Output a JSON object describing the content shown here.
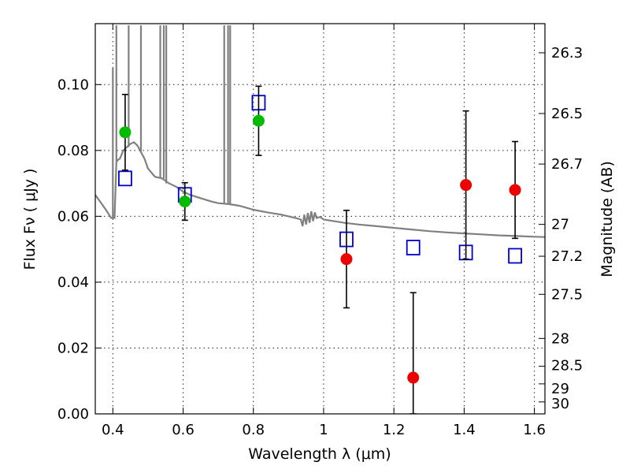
{
  "chart_data": {
    "type": "scatter",
    "xlabel": "Wavelength  λ (μm)",
    "ylabel": "Flux  Fν  ( μJy )",
    "ylabel_right": "Magnitude (AB)",
    "xlim": [
      0.35,
      1.63
    ],
    "ylim": [
      0.0,
      0.1185
    ],
    "grid": true,
    "x_ticks": [
      0.4,
      0.6,
      0.8,
      1.0,
      1.2,
      1.4,
      1.6
    ],
    "x_tick_labels": [
      "0.4",
      "0.6",
      "0.8",
      "1",
      "1.2",
      "1.4",
      "1.6"
    ],
    "y_ticks": [
      0.0,
      0.02,
      0.04,
      0.06,
      0.08,
      0.1
    ],
    "y_tick_labels": [
      "0.00",
      "0.02",
      "0.04",
      "0.06",
      "0.08",
      "0.10"
    ],
    "mag_ticks": [
      26.3,
      26.5,
      26.7,
      27.0,
      27.2,
      27.5,
      28.0,
      28.5,
      29.0,
      30.0
    ],
    "mag_tick_labels": [
      "26.3",
      "26.5",
      "26.7",
      "27",
      "27.2",
      "27.5",
      "28",
      "28.5",
      "29",
      "30"
    ],
    "series": [
      {
        "kind": "model_spectrum",
        "color": "#808080",
        "x": [
          0.35,
          0.36,
          0.38,
          0.395,
          0.405,
          0.41,
          0.415,
          0.42,
          0.43,
          0.44,
          0.45,
          0.46,
          0.47,
          0.48,
          0.49,
          0.5,
          0.52,
          0.54,
          0.56,
          0.58,
          0.6,
          0.62,
          0.65,
          0.68,
          0.7,
          0.73,
          0.76,
          0.8,
          0.84,
          0.88,
          0.9,
          0.92,
          0.935,
          0.94,
          0.945,
          0.95,
          0.955,
          0.96,
          0.965,
          0.97,
          0.975,
          0.98,
          0.99,
          1.0,
          1.03,
          1.06,
          1.1,
          1.15,
          1.2,
          1.25,
          1.3,
          1.35,
          1.4,
          1.45,
          1.5,
          1.55,
          1.6,
          1.63
        ],
        "y": [
          0.0665,
          0.065,
          0.062,
          0.0595,
          0.0595,
          0.0765,
          0.0772,
          0.0775,
          0.08,
          0.081,
          0.082,
          0.0825,
          0.0815,
          0.0795,
          0.0775,
          0.0745,
          0.072,
          0.0715,
          0.07,
          0.069,
          0.0675,
          0.0665,
          0.0655,
          0.0645,
          0.064,
          0.0637,
          0.0632,
          0.062,
          0.0612,
          0.0605,
          0.06,
          0.0595,
          0.059,
          0.057,
          0.0605,
          0.0575,
          0.061,
          0.058,
          0.0615,
          0.0585,
          0.0612,
          0.0595,
          0.0598,
          0.059,
          0.0585,
          0.058,
          0.0575,
          0.057,
          0.0565,
          0.056,
          0.0555,
          0.0551,
          0.0548,
          0.0545,
          0.0542,
          0.054,
          0.0538,
          0.0537
        ],
        "spikes": [
          [
            0.4,
            0.105
          ],
          [
            0.41,
            0.118
          ],
          [
            0.445,
            0.118
          ],
          [
            0.48,
            0.118
          ],
          [
            0.535,
            0.118
          ],
          [
            0.545,
            0.118
          ],
          [
            0.552,
            0.118
          ],
          [
            0.717,
            0.118
          ],
          [
            0.728,
            0.118
          ],
          [
            0.734,
            0.118
          ]
        ]
      },
      {
        "kind": "model_boxes",
        "marker": "open-square",
        "color": "#0000cc",
        "x": [
          0.435,
          0.605,
          0.815,
          1.065,
          1.255,
          1.405,
          1.545
        ],
        "y": [
          0.0715,
          0.0665,
          0.0945,
          0.053,
          0.0505,
          0.049,
          0.048
        ]
      },
      {
        "kind": "observed",
        "marker": "filled-circle",
        "color": "#00bb00",
        "x": [
          0.435,
          0.605,
          0.815
        ],
        "y": [
          0.0855,
          0.0645,
          0.089
        ],
        "yerr_low": [
          0.0115,
          0.0057,
          0.0105
        ],
        "yerr_high": [
          0.0115,
          0.0057,
          0.0105
        ]
      },
      {
        "kind": "observed",
        "marker": "filled-circle",
        "color": "#ee0000",
        "x": [
          1.065,
          1.255,
          1.405,
          1.545
        ],
        "y": [
          0.047,
          0.011,
          0.0695,
          0.068
        ],
        "yerr_low": [
          0.0148,
          0.011,
          0.0225,
          0.0147
        ],
        "yerr_high": [
          0.0148,
          0.0258,
          0.0225,
          0.0147
        ]
      }
    ]
  }
}
